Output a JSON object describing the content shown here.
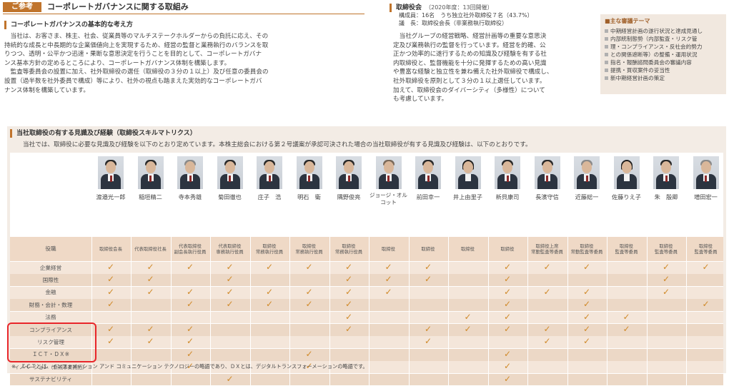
{
  "header": {
    "tag": "ご参考",
    "title": "コーポレートガバナンスに関する取組み"
  },
  "basic": {
    "heading": "コーポレートガバナンスの基本的な考え方",
    "p1": [
      "　当社は、お客さま、株主、社会、従業員等のマルチステークホルダーからの負託に応え、その",
      "持続的な成長と中長期的な企業価値向上を実現するため、経営の監督と業務執行のバランスを取",
      "りつつ、透明・公平かつ迅速・果断な意思決定を行うことを目的として、コーポレートガバナ",
      "ンス基本方針の定めるところにより、コーポレートガバナンス体制を構築します。",
      "　監査等委員会の設置に加え、社外取締役の選任（取締役の３分の１以上）及び任意の委員会の",
      "設置（過半数を社外委員で構成）等により、社外の視点も踏まえた実効的なコーポレートガバ",
      "ナンス体制を構築しています。"
    ]
  },
  "board": {
    "heading": "取締役会",
    "sub": "（2020年度：13回開催）",
    "composition": "構成員：16名　うち独立社外取締役７名（43.7%）",
    "chair": "議　長：取締役会長（非業務執行取締役）",
    "p": [
      "　当社グループの経営戦略、経営計画等の重要な意思決",
      "定及び業務執行の監督を行っています。経営を的確、公",
      "正かつ効率的に遂行するための知識及び経験を有する社",
      "内取締役と、監督機能を十分に発揮するための高い見識",
      "や豊富な経験と独立性を兼ね備えた社外取締役で構成し、",
      "社外取締役を原則として３分の１以上選任しています。",
      "加えて、取締役会のダイバーシティ（多様性）について",
      "も考慮しています。"
    ]
  },
  "themes": {
    "title": "■主な審議テーマ",
    "items": [
      "中期経営計画の遂行状況と達成見通し",
      "内部統制態勢（内部監査・リスク管",
      "理・コンプライアンス・反社会的勢力",
      "との関係遮断等）の整備・運用状況",
      "指名・報酬諮問委員会の審議内容",
      "提携・買収案件の妥当性",
      "新中期経営計画の策定"
    ]
  },
  "skills": {
    "heading": "当社取締役の有する見識及び経験（取締役スキルマトリクス）",
    "intro": "当社では、取締役に必要な見識及び経験を以下のとおり定めています。本株主総会における第２号議案が承認可決された場合の当社取締役が有する見識及び経験は、以下のとおりです。",
    "role_label": "役職",
    "directors": [
      {
        "name": "渡邉光一郎",
        "role": [
          "取締役会長"
        ]
      },
      {
        "name": "稲垣精二",
        "role": [
          "代表取締役社長"
        ]
      },
      {
        "name": "寺本秀雄",
        "role": [
          "代表取締役",
          "副会長執行役員"
        ]
      },
      {
        "name": "菊田徹也",
        "role": [
          "代表取締役",
          "専務執行役員"
        ]
      },
      {
        "name": "庄子　浩",
        "role": [
          "取締役",
          "常務執行役員"
        ]
      },
      {
        "name": "明石　衛",
        "role": [
          "取締役",
          "常務執行役員"
        ]
      },
      {
        "name": "隅野俊亮",
        "role": [
          "取締役",
          "常務執行役員"
        ]
      },
      {
        "name": "ジョージ・オルコット",
        "role": [
          "取締役"
        ]
      },
      {
        "name": "前田幸一",
        "role": [
          "取締役"
        ]
      },
      {
        "name": "井上由里子",
        "role": [
          "取締役"
        ]
      },
      {
        "name": "新貝康司",
        "role": [
          "取締役"
        ]
      },
      {
        "name": "長濱守信",
        "role": [
          "取締役上席",
          "常勤監査等委員"
        ]
      },
      {
        "name": "近藤総一",
        "role": [
          "取締役",
          "常勤監査等委員"
        ]
      },
      {
        "name": "佐藤りえ子",
        "role": [
          "取締役",
          "監査等委員"
        ]
      },
      {
        "name": "朱　殷卿",
        "role": [
          "取締役",
          "監査等委員"
        ]
      },
      {
        "name": "増田宏一",
        "role": [
          "取締役",
          "監査等委員"
        ]
      }
    ],
    "rows": [
      {
        "label": "企業経営",
        "checks": [
          1,
          1,
          1,
          1,
          1,
          1,
          1,
          1,
          1,
          0,
          1,
          1,
          1,
          0,
          1,
          1
        ]
      },
      {
        "label": "国際性",
        "checks": [
          1,
          1,
          0,
          1,
          0,
          0,
          1,
          1,
          1,
          0,
          1,
          0,
          0,
          0,
          1,
          0
        ]
      },
      {
        "label": "金融",
        "checks": [
          1,
          1,
          1,
          1,
          1,
          1,
          1,
          1,
          0,
          0,
          1,
          1,
          1,
          0,
          1,
          0
        ]
      },
      {
        "label": "財務・会計・数理",
        "checks": [
          1,
          0,
          1,
          1,
          1,
          1,
          1,
          0,
          0,
          0,
          1,
          0,
          1,
          0,
          0,
          1
        ]
      },
      {
        "label": "法務",
        "checks": [
          0,
          0,
          0,
          0,
          0,
          0,
          1,
          0,
          0,
          1,
          1,
          0,
          1,
          1,
          0,
          0
        ]
      },
      {
        "label": "コンプライアンス",
        "checks": [
          1,
          1,
          1,
          0,
          0,
          0,
          1,
          0,
          1,
          1,
          1,
          1,
          1,
          1,
          0,
          0
        ]
      },
      {
        "label": "リスク管理",
        "checks": [
          1,
          1,
          1,
          0,
          0,
          0,
          0,
          0,
          1,
          0,
          0,
          1,
          1,
          0,
          0,
          0
        ]
      },
      {
        "label": "ＩＣＴ・ＤＸ※",
        "checks": [
          0,
          0,
          1,
          0,
          0,
          1,
          0,
          0,
          0,
          0,
          1,
          0,
          0,
          0,
          0,
          0
        ]
      },
      {
        "label": "イノベーション（新規事業開拓）",
        "checks": [
          0,
          0,
          1,
          0,
          0,
          1,
          0,
          0,
          0,
          0,
          1,
          0,
          0,
          0,
          0,
          0
        ]
      },
      {
        "label": "サステナビリティ",
        "checks": [
          0,
          0,
          0,
          1,
          0,
          0,
          0,
          0,
          0,
          0,
          1,
          0,
          0,
          0,
          0,
          0
        ]
      }
    ],
    "check_glyph": "✓",
    "footnote": "※　ＩＣＴとは、インフォメーション アンド コミュニケーション テクノロジーの略語であり、ＤＸとは、デジタルトランスフォーメーションの略語です。"
  }
}
